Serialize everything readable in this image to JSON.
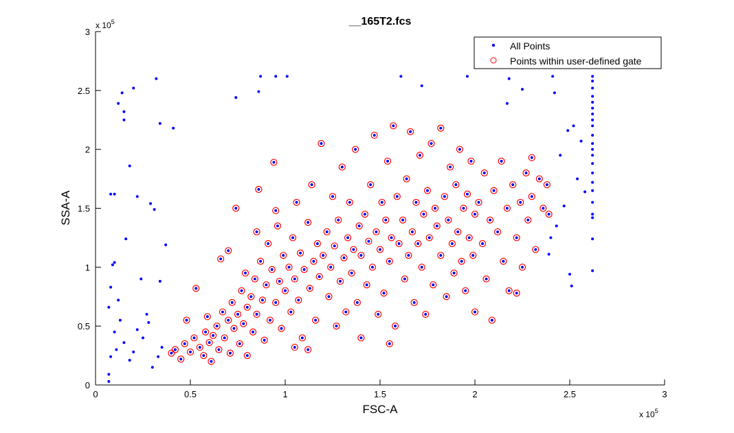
{
  "chart_data": {
    "type": "scatter",
    "title": "__165T2.fcs",
    "xlabel": "FSC-A",
    "ylabel": "SSA-A",
    "x_exponent_label": "x 10",
    "y_exponent_label": "x 10",
    "exponent": "5",
    "xlim": [
      0,
      3
    ],
    "ylim": [
      0,
      3
    ],
    "xticks": [
      "0",
      "0.5",
      "1",
      "1.5",
      "2",
      "2.5",
      "3"
    ],
    "yticks": [
      "0",
      "0.5",
      "1",
      "1.5",
      "2",
      "2.5",
      "3"
    ],
    "grid": false,
    "legend_position": "top-right",
    "colors": {
      "all_points": "#0000ff",
      "gated": "#ff0000"
    },
    "series": [
      {
        "name": "All Points",
        "marker": "dot",
        "points": [
          [
            0.12,
            2.39
          ],
          [
            0.14,
            2.48
          ],
          [
            0.15,
            2.32
          ],
          [
            0.15,
            2.25
          ],
          [
            0.2,
            2.52
          ],
          [
            0.32,
            2.6
          ],
          [
            0.34,
            2.22
          ],
          [
            0.41,
            2.18
          ],
          [
            0.18,
            1.86
          ],
          [
            0.08,
            1.62
          ],
          [
            0.1,
            1.62
          ],
          [
            0.22,
            1.6
          ],
          [
            0.29,
            1.54
          ],
          [
            0.31,
            1.49
          ],
          [
            0.16,
            1.24
          ],
          [
            0.37,
            1.19
          ],
          [
            0.09,
            1.02
          ],
          [
            0.1,
            1.04
          ],
          [
            0.08,
            0.83
          ],
          [
            0.34,
            0.88
          ],
          [
            0.07,
            0.66
          ],
          [
            0.08,
            0.24
          ],
          [
            0.07,
            0.09
          ],
          [
            0.07,
            0.03
          ],
          [
            0.15,
            0.36
          ],
          [
            0.22,
            0.47
          ],
          [
            0.28,
            0.53
          ],
          [
            0.33,
            0.24
          ],
          [
            0.3,
            0.15
          ],
          [
            0.18,
            0.21
          ],
          [
            0.11,
            0.3
          ],
          [
            0.13,
            0.55
          ],
          [
            0.25,
            0.4
          ],
          [
            0.2,
            0.28
          ],
          [
            0.35,
            0.32
          ],
          [
            0.27,
            0.6
          ],
          [
            0.12,
            0.72
          ],
          [
            0.24,
            0.9
          ],
          [
            0.1,
            0.45
          ],
          [
            0.74,
            2.44
          ],
          [
            0.87,
            2.62
          ],
          [
            0.86,
            2.49
          ],
          [
            0.95,
            2.62
          ],
          [
            1.01,
            2.62
          ],
          [
            1.61,
            2.62
          ],
          [
            1.72,
            2.54
          ],
          [
            1.96,
            2.62
          ],
          [
            2.18,
            2.6
          ],
          [
            2.25,
            2.51
          ],
          [
            2.41,
            2.62
          ],
          [
            2.42,
            2.48
          ],
          [
            2.17,
            2.39
          ],
          [
            2.62,
            2.62
          ],
          [
            2.62,
            2.58
          ],
          [
            2.62,
            2.52
          ],
          [
            2.62,
            2.45
          ],
          [
            2.62,
            2.4
          ],
          [
            2.62,
            2.35
          ],
          [
            2.62,
            2.3
          ],
          [
            2.62,
            2.25
          ],
          [
            2.62,
            2.2
          ],
          [
            2.62,
            2.12
          ],
          [
            2.62,
            2.05
          ],
          [
            2.62,
            2.0
          ],
          [
            2.62,
            1.95
          ],
          [
            2.62,
            1.88
          ],
          [
            2.62,
            1.8
          ],
          [
            2.62,
            1.72
          ],
          [
            2.62,
            1.65
          ],
          [
            2.62,
            1.55
          ],
          [
            2.62,
            1.45
          ],
          [
            2.62,
            1.42
          ],
          [
            2.62,
            1.24
          ],
          [
            2.62,
            0.97
          ],
          [
            2.5,
            0.94
          ],
          [
            2.51,
            0.84
          ],
          [
            2.39,
            1.11
          ],
          [
            2.47,
            1.52
          ],
          [
            2.54,
            1.75
          ],
          [
            2.49,
            2.16
          ],
          [
            2.56,
            2.07
          ],
          [
            2.58,
            1.64
          ],
          [
            2.43,
            1.35
          ],
          [
            2.45,
            1.95
          ],
          [
            2.52,
            2.2
          ],
          [
            2.4,
            1.25
          ]
        ]
      },
      {
        "name": "Points within user-defined gate",
        "marker": "circle",
        "points": [
          [
            0.4,
            0.27
          ],
          [
            0.42,
            0.3
          ],
          [
            0.45,
            0.22
          ],
          [
            0.47,
            0.35
          ],
          [
            0.5,
            0.28
          ],
          [
            0.52,
            0.4
          ],
          [
            0.55,
            0.32
          ],
          [
            0.57,
            0.25
          ],
          [
            0.58,
            0.45
          ],
          [
            0.6,
            0.36
          ],
          [
            0.48,
            0.55
          ],
          [
            0.53,
            0.82
          ],
          [
            0.61,
            0.2
          ],
          [
            0.59,
            0.58
          ],
          [
            0.62,
            0.42
          ],
          [
            0.64,
            0.5
          ],
          [
            0.65,
            0.3
          ],
          [
            0.67,
            0.62
          ],
          [
            0.68,
            0.4
          ],
          [
            0.7,
            0.55
          ],
          [
            0.71,
            0.27
          ],
          [
            0.72,
            0.7
          ],
          [
            0.73,
            0.48
          ],
          [
            0.74,
            1.5
          ],
          [
            0.75,
            0.6
          ],
          [
            0.76,
            0.35
          ],
          [
            0.77,
            0.8
          ],
          [
            0.78,
            0.52
          ],
          [
            0.79,
            0.95
          ],
          [
            0.8,
            0.66
          ],
          [
            0.66,
            1.07
          ],
          [
            0.7,
            1.14
          ],
          [
            0.8,
            0.25
          ],
          [
            0.82,
            0.75
          ],
          [
            0.83,
            0.45
          ],
          [
            0.84,
            0.9
          ],
          [
            0.85,
            0.6
          ],
          [
            0.86,
            1.66
          ],
          [
            0.87,
            1.05
          ],
          [
            0.88,
            0.72
          ],
          [
            0.89,
            0.38
          ],
          [
            0.9,
            0.85
          ],
          [
            0.91,
            1.2
          ],
          [
            0.92,
            0.55
          ],
          [
            0.93,
            0.98
          ],
          [
            0.94,
            1.89
          ],
          [
            0.95,
            0.7
          ],
          [
            0.96,
            1.35
          ],
          [
            0.97,
            0.88
          ],
          [
            0.98,
            0.48
          ],
          [
            0.99,
            1.1
          ],
          [
            1.0,
            0.8
          ],
          [
            0.85,
            1.3
          ],
          [
            0.95,
            1.48
          ],
          [
            1.02,
            1.0
          ],
          [
            1.03,
            0.62
          ],
          [
            1.04,
            1.25
          ],
          [
            1.05,
            0.9
          ],
          [
            1.06,
            1.55
          ],
          [
            1.07,
            0.72
          ],
          [
            1.08,
            1.12
          ],
          [
            1.09,
            0.4
          ],
          [
            1.1,
            0.98
          ],
          [
            1.12,
            1.38
          ],
          [
            1.13,
            0.82
          ],
          [
            1.14,
            1.7
          ],
          [
            1.15,
            1.05
          ],
          [
            1.16,
            0.55
          ],
          [
            1.17,
            1.2
          ],
          [
            1.18,
            0.92
          ],
          [
            1.19,
            2.05
          ],
          [
            1.2,
            1.1
          ],
          [
            1.12,
            0.3
          ],
          [
            1.05,
            0.32
          ],
          [
            1.22,
            1.3
          ],
          [
            1.23,
            0.75
          ],
          [
            1.24,
            1.0
          ],
          [
            1.25,
            1.6
          ],
          [
            1.26,
            1.18
          ],
          [
            1.27,
            0.5
          ],
          [
            1.28,
            1.4
          ],
          [
            1.29,
            0.88
          ],
          [
            1.3,
            1.85
          ],
          [
            1.31,
            1.08
          ],
          [
            1.32,
            0.62
          ],
          [
            1.33,
            1.25
          ],
          [
            1.34,
            1.55
          ],
          [
            1.35,
            0.95
          ],
          [
            1.36,
            1.15
          ],
          [
            1.37,
            2.0
          ],
          [
            1.38,
            0.7
          ],
          [
            1.39,
            1.35
          ],
          [
            1.4,
            1.1
          ],
          [
            1.4,
            0.4
          ],
          [
            1.42,
            1.45
          ],
          [
            1.43,
            0.85
          ],
          [
            1.44,
            1.22
          ],
          [
            1.45,
            1.7
          ],
          [
            1.46,
            1.0
          ],
          [
            1.47,
            2.12
          ],
          [
            1.48,
            1.3
          ],
          [
            1.49,
            0.6
          ],
          [
            1.5,
            1.15
          ],
          [
            1.51,
            1.55
          ],
          [
            1.52,
            0.78
          ],
          [
            1.53,
            1.4
          ],
          [
            1.54,
            1.9
          ],
          [
            1.55,
            1.05
          ],
          [
            1.56,
            1.25
          ],
          [
            1.57,
            2.2
          ],
          [
            1.58,
            0.5
          ],
          [
            1.59,
            1.6
          ],
          [
            1.6,
            1.2
          ],
          [
            1.55,
            0.35
          ],
          [
            1.62,
            1.4
          ],
          [
            1.63,
            0.9
          ],
          [
            1.64,
            1.75
          ],
          [
            1.65,
            1.1
          ],
          [
            1.66,
            2.15
          ],
          [
            1.67,
            1.3
          ],
          [
            1.68,
            0.7
          ],
          [
            1.69,
            1.55
          ],
          [
            1.7,
            1.2
          ],
          [
            1.71,
            1.95
          ],
          [
            1.72,
            1.0
          ],
          [
            1.73,
            1.45
          ],
          [
            1.74,
            0.6
          ],
          [
            1.75,
            1.65
          ],
          [
            1.76,
            1.25
          ],
          [
            1.77,
            2.05
          ],
          [
            1.78,
            0.85
          ],
          [
            1.79,
            1.5
          ],
          [
            1.8,
            1.35
          ],
          [
            1.82,
            2.18
          ],
          [
            1.82,
            1.1
          ],
          [
            1.84,
            1.6
          ],
          [
            1.85,
            0.75
          ],
          [
            1.86,
            1.4
          ],
          [
            1.87,
            1.85
          ],
          [
            1.88,
            1.2
          ],
          [
            1.89,
            0.95
          ],
          [
            1.9,
            1.7
          ],
          [
            1.91,
            1.3
          ],
          [
            1.92,
            2.0
          ],
          [
            1.93,
            1.05
          ],
          [
            1.94,
            1.5
          ],
          [
            1.95,
            0.8
          ],
          [
            1.96,
            1.62
          ],
          [
            1.97,
            1.25
          ],
          [
            1.98,
            1.9
          ],
          [
            1.99,
            1.1
          ],
          [
            2.0,
            1.45
          ],
          [
            2.0,
            0.62
          ],
          [
            2.02,
            1.55
          ],
          [
            2.04,
            1.2
          ],
          [
            2.05,
            1.8
          ],
          [
            2.06,
            0.9
          ],
          [
            2.08,
            1.4
          ],
          [
            2.09,
            0.55
          ],
          [
            2.1,
            1.65
          ],
          [
            2.12,
            1.3
          ],
          [
            2.14,
            1.9
          ],
          [
            2.15,
            1.05
          ],
          [
            2.17,
            1.5
          ],
          [
            2.18,
            0.8
          ],
          [
            2.2,
            1.7
          ],
          [
            2.22,
            1.25
          ],
          [
            2.24,
            1.55
          ],
          [
            2.25,
            1.0
          ],
          [
            2.27,
            1.8
          ],
          [
            2.28,
            1.4
          ],
          [
            2.3,
            1.6
          ],
          [
            2.32,
            1.15
          ],
          [
            2.34,
            1.75
          ],
          [
            2.36,
            1.5
          ],
          [
            2.38,
            1.7
          ],
          [
            2.39,
            1.45
          ],
          [
            2.22,
            0.78
          ],
          [
            2.3,
            1.93
          ]
        ]
      }
    ]
  }
}
